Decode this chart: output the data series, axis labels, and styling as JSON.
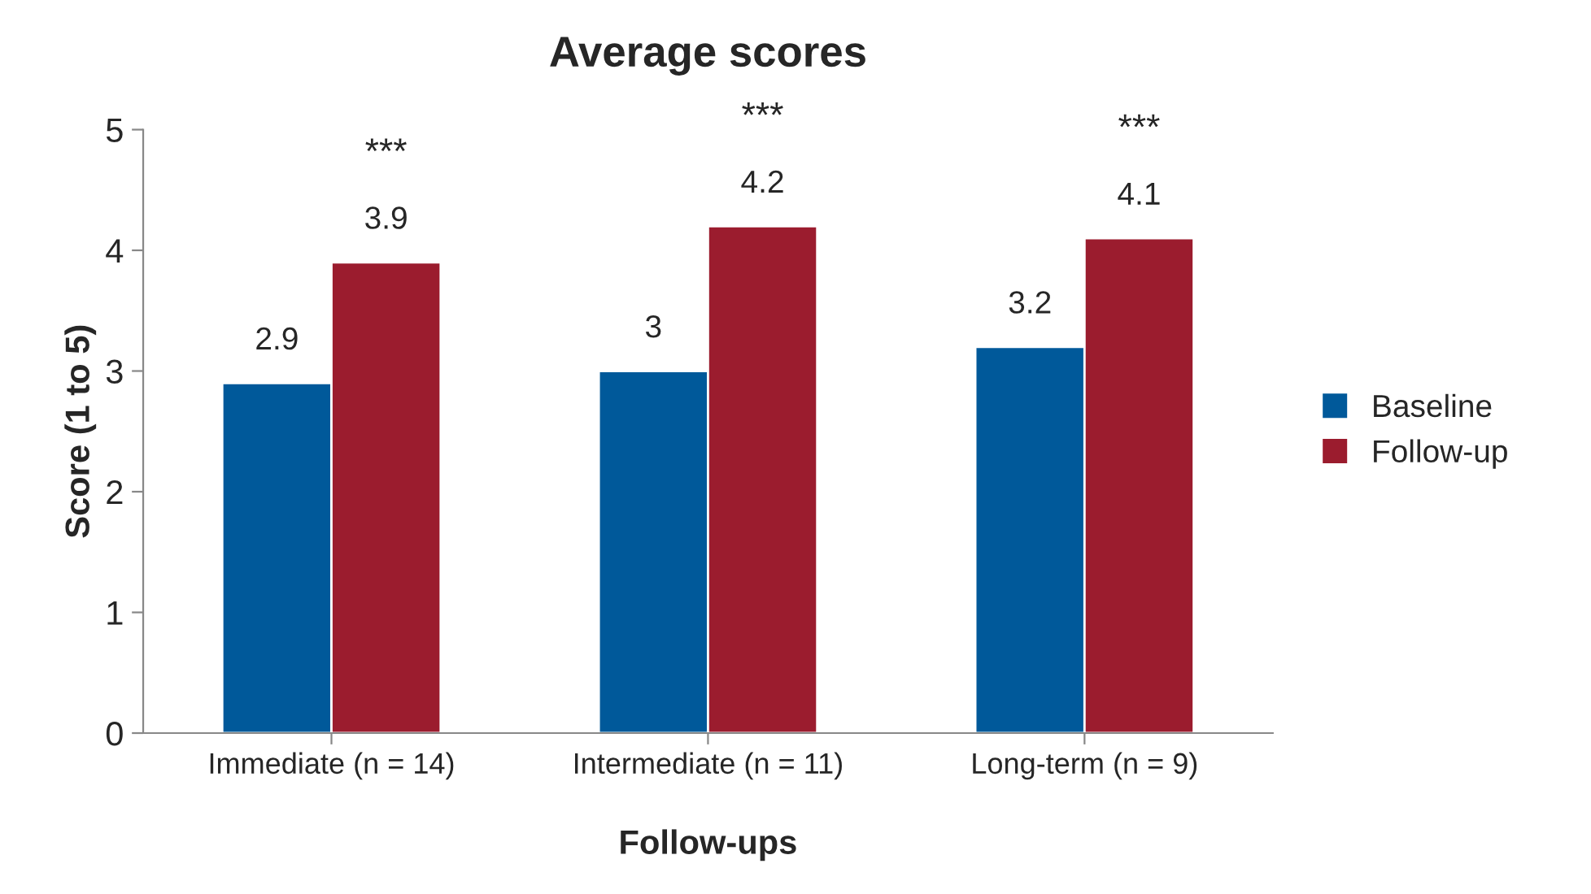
{
  "chart_data": {
    "type": "bar",
    "title": "Average scores",
    "xlabel": "Follow-ups",
    "ylabel": "Score (1 to 5)",
    "categories": [
      "Immediate (n = 14)",
      "Intermediate (n = 11)",
      "Long-term (n = 9)"
    ],
    "series": [
      {
        "name": "Baseline",
        "color": "#00599a",
        "values": [
          2.9,
          3,
          3.2
        ]
      },
      {
        "name": "Follow-up",
        "color": "#9b1c2e",
        "values": [
          3.9,
          4.2,
          4.1
        ]
      }
    ],
    "ylim": [
      0,
      5
    ],
    "yticks": [
      0,
      1,
      2,
      3,
      4,
      5
    ],
    "grid": false,
    "legend": "right",
    "data_labels": true,
    "annotations": [
      "***",
      "***",
      "***"
    ]
  }
}
